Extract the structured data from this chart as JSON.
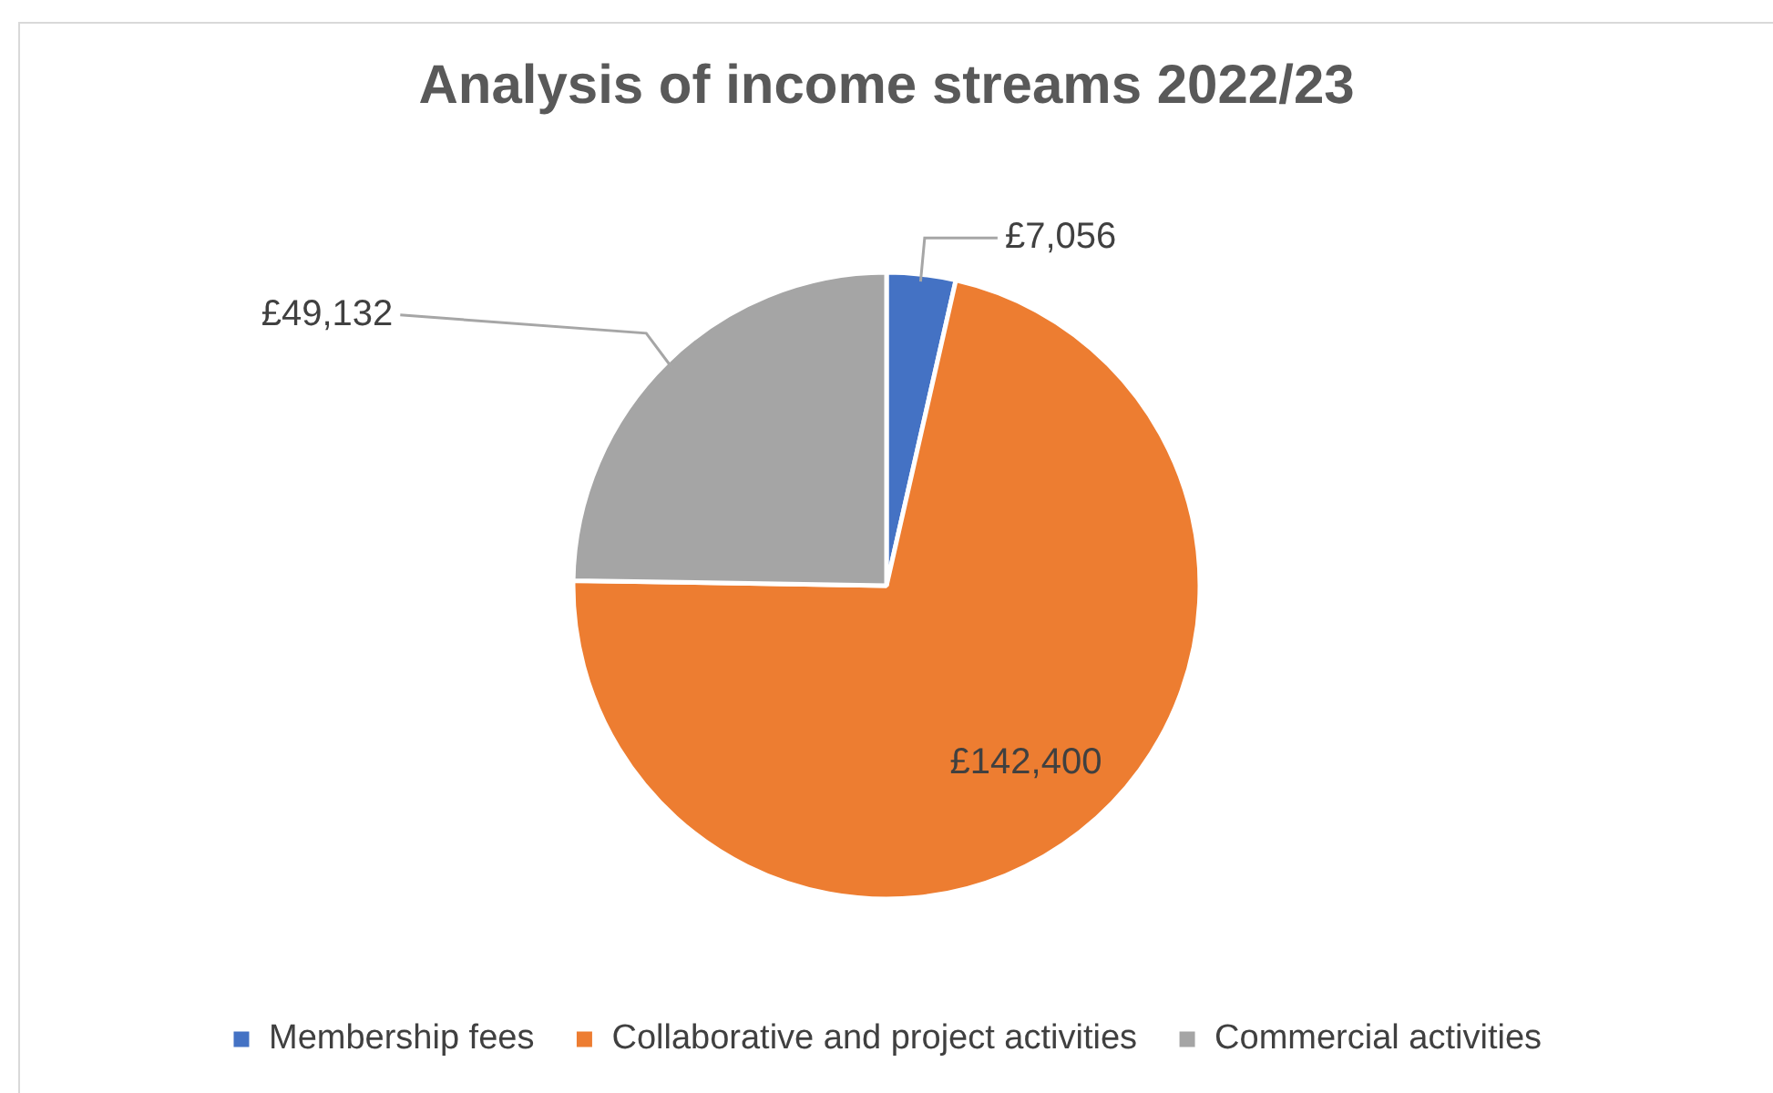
{
  "chart_data": {
    "type": "pie",
    "title": "Analysis of income streams 2022/23",
    "categories": [
      "Membership fees",
      "Collaborative and project activities",
      "Commercial activities"
    ],
    "values": [
      7056,
      142400,
      49132
    ],
    "colors": [
      "#4472c4",
      "#ed7d31",
      "#a5a5a5"
    ],
    "value_labels": [
      "£7,056",
      "£142,400",
      "£49,132"
    ],
    "legend": "bottom"
  }
}
